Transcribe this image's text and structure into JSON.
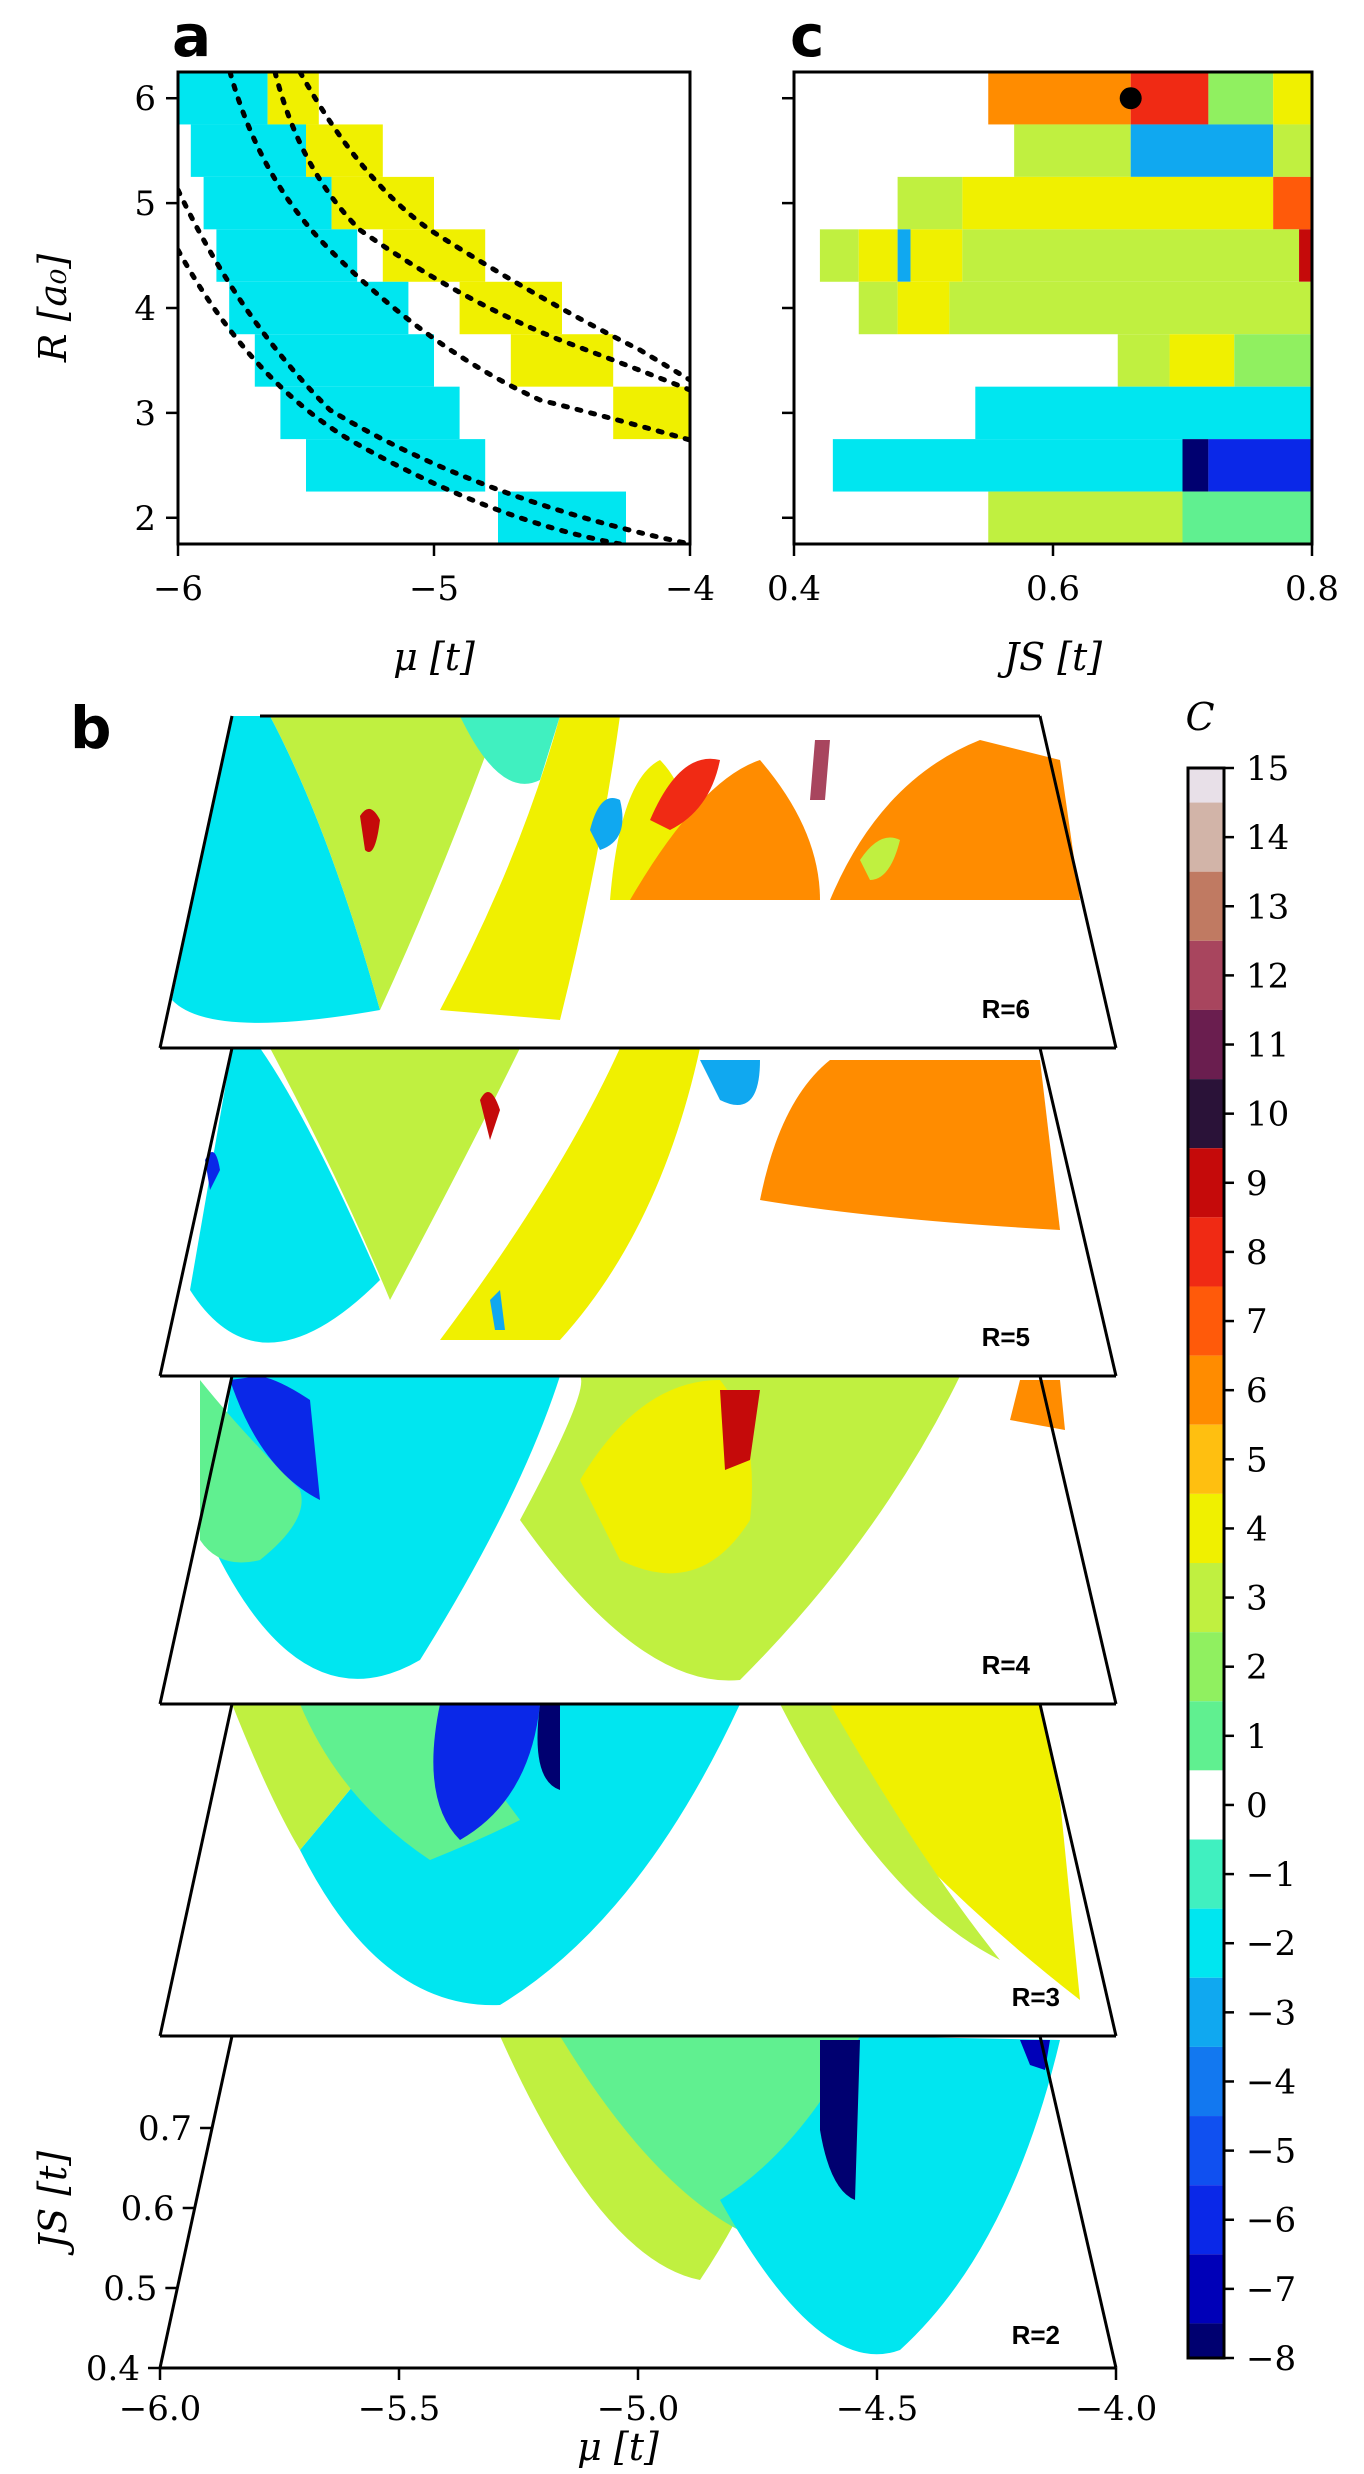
{
  "panels": {
    "a": {
      "letter": "a"
    },
    "b": {
      "letter": "b"
    },
    "c": {
      "letter": "c"
    }
  },
  "chart_data": [
    {
      "id": "a",
      "type": "heatmap",
      "xlabel": "μ [t]",
      "ylabel": "R [a₀]",
      "xlim": [
        -6,
        -4
      ],
      "ylim": [
        1.75,
        6.25
      ],
      "xticks": [
        "−6",
        "−5",
        "−4"
      ],
      "yticks": [
        "2",
        "3",
        "4",
        "5",
        "6"
      ],
      "cells": [
        {
          "r": 6,
          "mu": [
            -6.0,
            -5.65
          ],
          "C": -2
        },
        {
          "r": 6,
          "mu": [
            -5.65,
            -5.45
          ],
          "C": 4
        },
        {
          "r": 5.5,
          "mu": [
            -5.95,
            -5.5
          ],
          "C": -2
        },
        {
          "r": 5.5,
          "mu": [
            -5.5,
            -5.2
          ],
          "C": 4
        },
        {
          "r": 5,
          "mu": [
            -5.9,
            -5.4
          ],
          "C": -2
        },
        {
          "r": 5,
          "mu": [
            -5.4,
            -5.0
          ],
          "C": 4
        },
        {
          "r": 4.5,
          "mu": [
            -5.85,
            -5.3
          ],
          "C": -2
        },
        {
          "r": 4.5,
          "mu": [
            -5.2,
            -4.8
          ],
          "C": 4
        },
        {
          "r": 4,
          "mu": [
            -5.8,
            -5.1
          ],
          "C": -2
        },
        {
          "r": 4,
          "mu": [
            -4.9,
            -4.5
          ],
          "C": 4
        },
        {
          "r": 3.5,
          "mu": [
            -5.7,
            -5.0
          ],
          "C": -2
        },
        {
          "r": 3.5,
          "mu": [
            -4.7,
            -4.3
          ],
          "C": 4
        },
        {
          "r": 3,
          "mu": [
            -5.6,
            -4.9
          ],
          "C": -2
        },
        {
          "r": 3,
          "mu": [
            -4.3,
            -4.0
          ],
          "C": 4
        },
        {
          "r": 2.5,
          "mu": [
            -5.5,
            -4.8
          ],
          "C": -2
        },
        {
          "r": 2,
          "mu": [
            -4.75,
            -4.25
          ],
          "C": -2
        }
      ]
    },
    {
      "id": "c",
      "type": "heatmap",
      "xlabel": "JS [t]",
      "xlim": [
        0.4,
        0.8
      ],
      "xticks": [
        "0.4",
        "0.6",
        "0.8"
      ],
      "yticks": [
        "",
        "",
        "",
        "",
        ""
      ],
      "rows": [
        {
          "r": 6,
          "segments": [
            [
              0.55,
              0.66,
              6
            ],
            [
              0.66,
              0.72,
              8
            ],
            [
              0.72,
              0.77,
              2
            ],
            [
              0.77,
              0.8,
              4
            ]
          ]
        },
        {
          "r": 5.5,
          "segments": [
            [
              0.57,
              0.66,
              3
            ],
            [
              0.66,
              0.77,
              -3
            ],
            [
              0.77,
              0.8,
              3
            ]
          ]
        },
        {
          "r": 5,
          "segments": [
            [
              0.48,
              0.53,
              3
            ],
            [
              0.53,
              0.77,
              4
            ],
            [
              0.77,
              0.8,
              7
            ]
          ]
        },
        {
          "r": 4.5,
          "segments": [
            [
              0.42,
              0.45,
              3
            ],
            [
              0.45,
              0.48,
              4
            ],
            [
              0.48,
              0.49,
              -3
            ],
            [
              0.49,
              0.53,
              4
            ],
            [
              0.53,
              0.79,
              3
            ],
            [
              0.79,
              0.8,
              9
            ]
          ]
        },
        {
          "r": 4,
          "segments": [
            [
              0.45,
              0.48,
              3
            ],
            [
              0.48,
              0.52,
              4
            ],
            [
              0.52,
              0.8,
              3
            ]
          ]
        },
        {
          "r": 3.5,
          "segments": [
            [
              0.65,
              0.69,
              3
            ],
            [
              0.69,
              0.74,
              4
            ],
            [
              0.74,
              0.8,
              2
            ]
          ]
        },
        {
          "r": 3,
          "segments": [
            [
              0.54,
              0.8,
              -2
            ]
          ]
        },
        {
          "r": 2.5,
          "segments": [
            [
              0.43,
              0.7,
              -2
            ],
            [
              0.7,
              0.72,
              -8
            ],
            [
              0.72,
              0.8,
              -6
            ]
          ]
        },
        {
          "r": 2,
          "segments": [
            [
              0.55,
              0.7,
              3
            ],
            [
              0.7,
              0.8,
              1
            ]
          ]
        }
      ],
      "marker": {
        "JS": 0.66,
        "R": 6
      }
    },
    {
      "id": "b",
      "type": "heatmap",
      "xlabel": "μ [t]",
      "ylabel": "JS [t]",
      "xlim": [
        -6.0,
        -4.0
      ],
      "ylim": [
        0.4,
        0.75
      ],
      "xticks": [
        "−6.0",
        "−5.5",
        "−5.0",
        "−4.5",
        "−4.0"
      ],
      "yticks": [
        "0.4",
        "0.5",
        "0.6",
        "0.7"
      ],
      "slices": [
        "R=6",
        "R=5",
        "R=4",
        "R=3",
        "R=2"
      ]
    }
  ],
  "colorbar": {
    "title": "C",
    "labels": [
      "15",
      "14",
      "13",
      "12",
      "11",
      "10",
      "9",
      "8",
      "7",
      "6",
      "5",
      "4",
      "3",
      "2",
      "1",
      "0",
      "−1",
      "−2",
      "−3",
      "−4",
      "−5",
      "−6",
      "−7",
      "−8"
    ],
    "colors": [
      "#e8e0e8",
      "#d2b4a8",
      "#c07a62",
      "#a8455e",
      "#6a1e4f",
      "#2a1238",
      "#c50a0a",
      "#f02a14",
      "#ff5a0a",
      "#ff8c00",
      "#ffbf10",
      "#f0f000",
      "#c0f040",
      "#90f060",
      "#60f090",
      "#ffffff",
      "#40f0c0",
      "#00e6f0",
      "#10a8f0",
      "#1278f0",
      "#1050f0",
      "#0a28e8",
      "#0000b8",
      "#000070"
    ]
  }
}
